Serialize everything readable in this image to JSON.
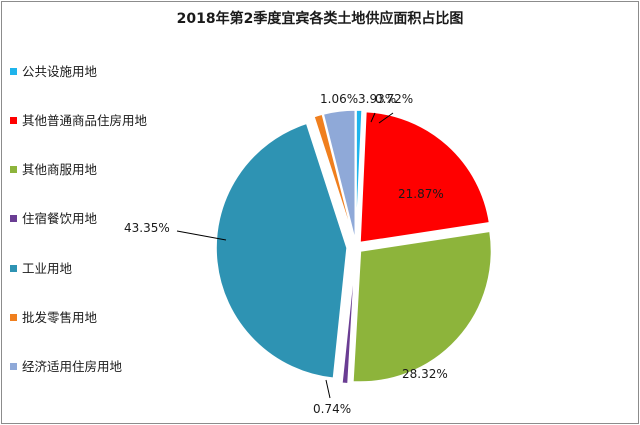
{
  "chart_data": {
    "type": "pie",
    "title": "2018年第2季度宜宾各类土地供应面积占比图",
    "legend_position": "left",
    "categories": [
      "公共设施用地",
      "其他普通商品住房用地",
      "其他商服用地",
      "住宿餐饮用地",
      "工业用地",
      "批发零售用地",
      "经济适用住房用地"
    ],
    "values": [
      0.72,
      21.87,
      28.32,
      0.74,
      43.35,
      1.06,
      3.93
    ],
    "data_labels": [
      "0.72%",
      "21.87%",
      "28.32%",
      "0.74%",
      "43.35%",
      "1.06%",
      "3.93%"
    ],
    "colors": [
      "#1fb4ec",
      "#ff0000",
      "#8db43b",
      "#6a3d93",
      "#2e93b3",
      "#f07f1e",
      "#8fa9d8"
    ],
    "exploded": true
  }
}
